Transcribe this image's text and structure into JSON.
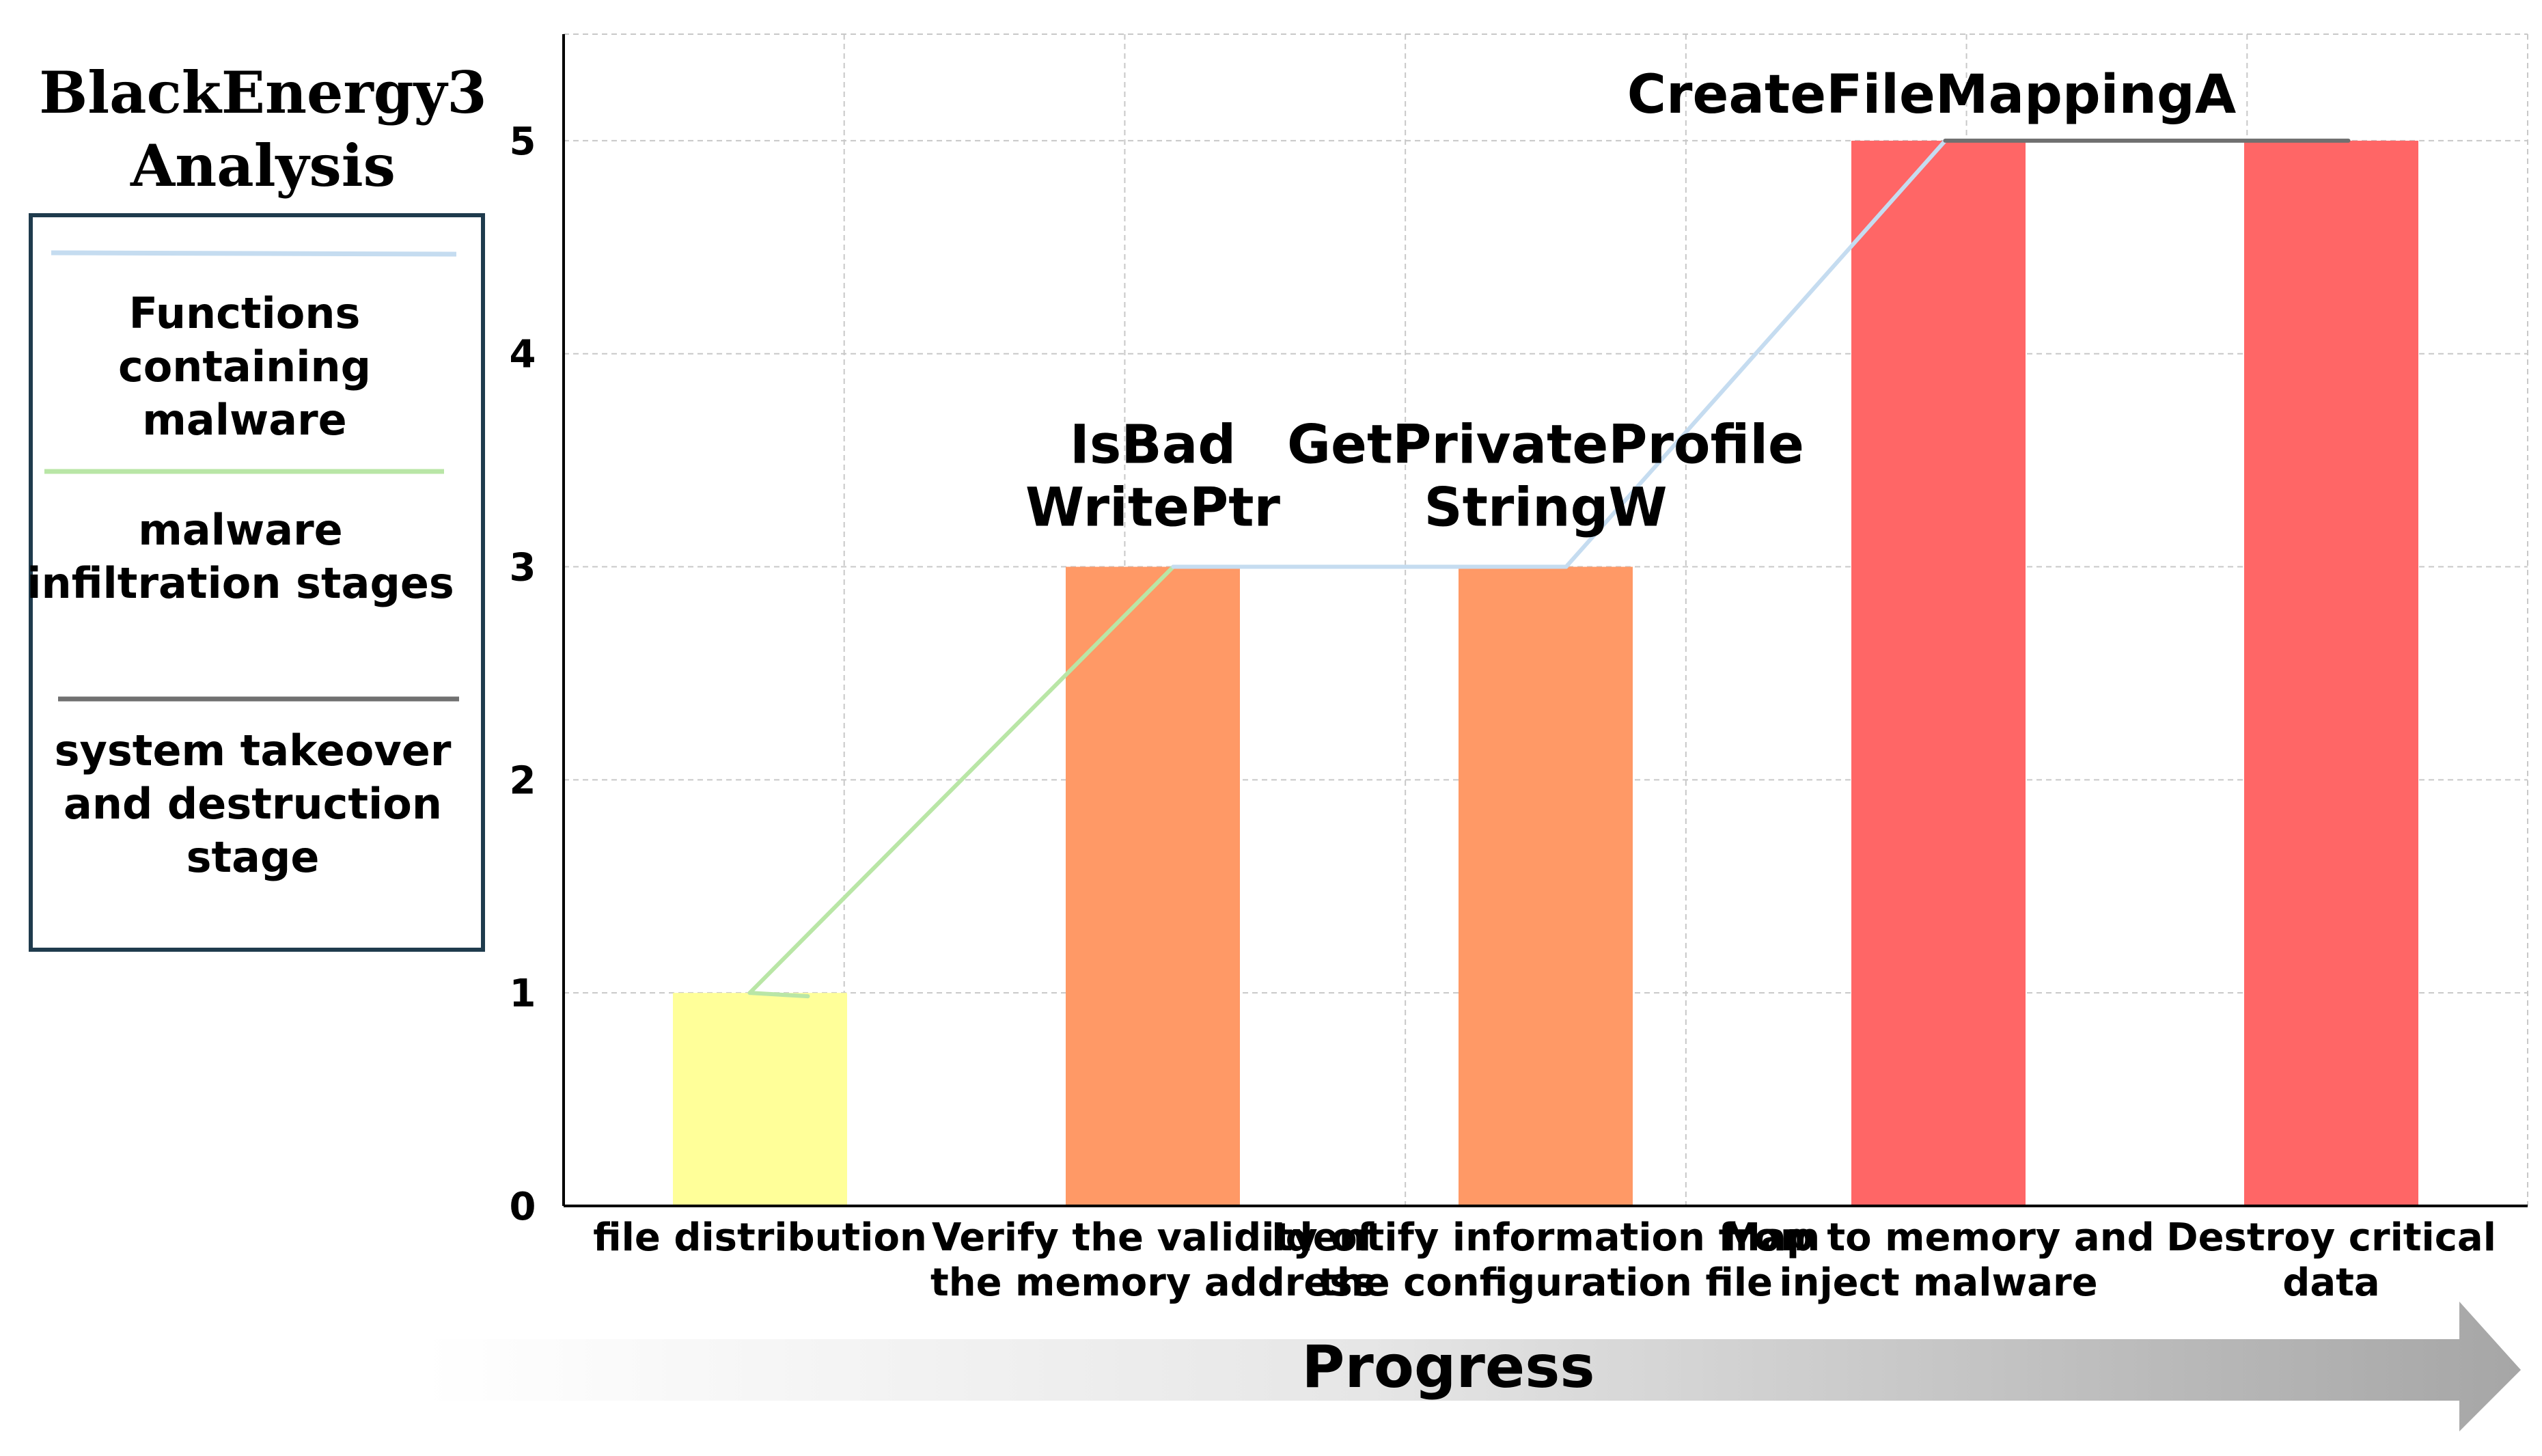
{
  "chart_data": {
    "type": "bar",
    "title": "BlackEnergy3 Analysis",
    "xlabel": "Progress",
    "ylabel": "",
    "ylim": [
      0,
      5.5
    ],
    "yticks": [
      0,
      1,
      2,
      3,
      4,
      5
    ],
    "grid": true,
    "categories": [
      "file distribution",
      "Verify the validity of the memory address",
      "Identify information from the configuration file",
      "Map to memory and inject malware",
      "Destroy critical data"
    ],
    "values": [
      1,
      3,
      3,
      5,
      5
    ],
    "bar_colors": [
      "#ffff99",
      "#ff9966",
      "#ff9966",
      "#ff6666",
      "#ff6666"
    ],
    "annotations": [
      {
        "text": "IsBad WritePtr",
        "category_index": 1
      },
      {
        "text": "GetPrivateProfile StringW",
        "category_index": 2
      },
      {
        "text": "CreateFileMappingA",
        "category_index": 3
      }
    ],
    "legend": {
      "placement": "left",
      "entries": [
        {
          "label": "Functions containing malware",
          "color": "#c5dcf0"
        },
        {
          "label": "malware infiltration stages",
          "color": "#b9e6a6"
        },
        {
          "label": "system takeover and destruction stage",
          "color": "#707070"
        }
      ]
    }
  }
}
